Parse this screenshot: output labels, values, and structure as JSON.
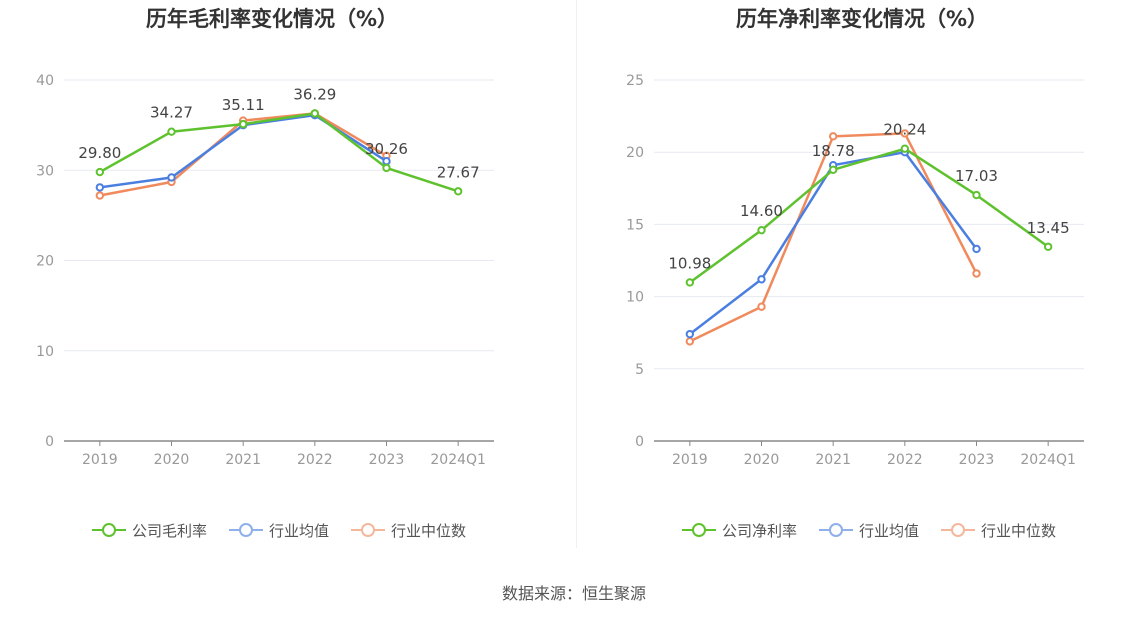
{
  "source_text": "数据来源：恒生聚源",
  "colors": {
    "company": "#5ec22e",
    "avg": "#4a7fe0",
    "median": "#f08a5d",
    "grid": "#e6e9f0",
    "axis": "#888888"
  },
  "chart_data": [
    {
      "type": "line",
      "title": "历年毛利率变化情况（%）",
      "categories": [
        "2019",
        "2020",
        "2021",
        "2022",
        "2023",
        "2024Q1"
      ],
      "yticks": [
        "0",
        "10",
        "20",
        "30",
        "40"
      ],
      "ylim": [
        0,
        40
      ],
      "xlabel": "",
      "ylabel": "",
      "legend_position": "bottom",
      "grid": true,
      "series": [
        {
          "name": "公司毛利率",
          "color": "#5ec22e",
          "values": [
            29.8,
            34.27,
            35.11,
            36.29,
            30.26,
            27.67
          ],
          "labels": [
            "29.80",
            "34.27",
            "35.11",
            "36.29",
            "30.26",
            "27.67"
          ]
        },
        {
          "name": "行业均值",
          "color": "#4a7fe0",
          "values": [
            28.1,
            29.2,
            35.0,
            36.1,
            31.0,
            null
          ]
        },
        {
          "name": "行业中位数",
          "color": "#f08a5d",
          "values": [
            27.2,
            28.7,
            35.5,
            36.3,
            31.6,
            null
          ]
        }
      ]
    },
    {
      "type": "line",
      "title": "历年净利率变化情况（%）",
      "categories": [
        "2019",
        "2020",
        "2021",
        "2022",
        "2023",
        "2024Q1"
      ],
      "yticks": [
        "0",
        "5",
        "10",
        "15",
        "20",
        "25"
      ],
      "ylim": [
        0,
        25
      ],
      "xlabel": "",
      "ylabel": "",
      "legend_position": "bottom",
      "grid": true,
      "series": [
        {
          "name": "公司净利率",
          "color": "#5ec22e",
          "values": [
            10.98,
            14.6,
            18.78,
            20.24,
            17.03,
            13.45
          ],
          "labels": [
            "10.98",
            "14.60",
            "18.78",
            "20.24",
            "17.03",
            "13.45"
          ]
        },
        {
          "name": "行业均值",
          "color": "#4a7fe0",
          "values": [
            7.4,
            11.2,
            19.1,
            20.0,
            13.3,
            null
          ]
        },
        {
          "name": "行业中位数",
          "color": "#f08a5d",
          "values": [
            6.9,
            9.3,
            21.1,
            21.3,
            11.6,
            null
          ]
        }
      ]
    }
  ]
}
